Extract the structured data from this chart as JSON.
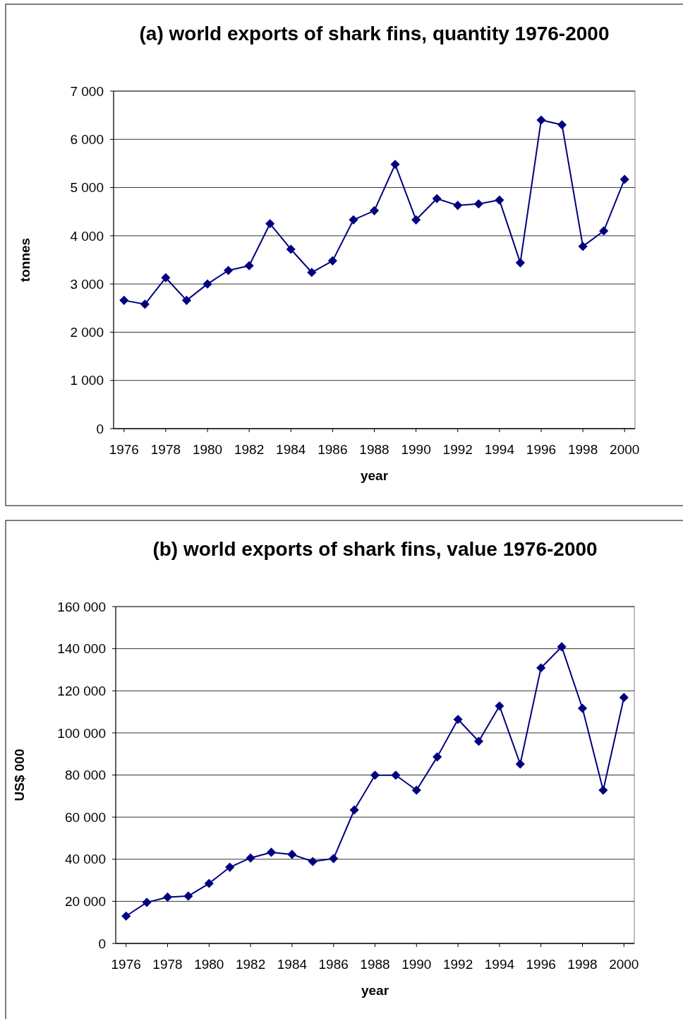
{
  "chart_data": [
    {
      "type": "line",
      "title": "(a) world exports of shark fins, quantity 1976-2000",
      "xlabel": "year",
      "ylabel": "tonnes",
      "x": [
        1976,
        1977,
        1978,
        1979,
        1980,
        1981,
        1982,
        1983,
        1984,
        1985,
        1986,
        1987,
        1988,
        1989,
        1990,
        1991,
        1992,
        1993,
        1994,
        1995,
        1996,
        1997,
        1998,
        1999,
        2000
      ],
      "series": [
        {
          "color": "#000080",
          "values": [
            2660,
            2580,
            3130,
            2660,
            3000,
            3280,
            3380,
            4250,
            3720,
            3240,
            3480,
            4330,
            4520,
            5480,
            4330,
            4770,
            4630,
            4660,
            4740,
            3440,
            6400,
            6300,
            3780,
            4100,
            5170
          ]
        }
      ],
      "xlim": [
        1975.5,
        2000.5
      ],
      "xticks": [
        1976,
        1978,
        1980,
        1982,
        1984,
        1986,
        1988,
        1990,
        1992,
        1994,
        1996,
        1998,
        2000
      ],
      "ylim": [
        0,
        7000
      ],
      "yticks": [
        0,
        {
          "value": 1000,
          "label": "1 000"
        },
        {
          "value": 2000,
          "label": "2 000"
        },
        {
          "value": 3000,
          "label": "3 000"
        },
        {
          "value": 4000,
          "label": "4 000"
        },
        {
          "value": 5000,
          "label": "5 000"
        },
        {
          "value": 6000,
          "label": "6 000"
        },
        {
          "value": 7000,
          "label": "7 000"
        }
      ],
      "grid": "y",
      "marker": "diamond",
      "line_style": "solid"
    },
    {
      "type": "line",
      "title": "(b) world exports of shark fins, value 1976-2000",
      "xlabel": "year",
      "ylabel": "US$ 000",
      "x": [
        1976,
        1977,
        1978,
        1979,
        1980,
        1981,
        1982,
        1983,
        1984,
        1985,
        1986,
        1987,
        1988,
        1989,
        1990,
        1991,
        1992,
        1993,
        1994,
        1995,
        1996,
        1997,
        1998,
        1999,
        2000
      ],
      "series": [
        {
          "color": "#000080",
          "values": [
            13000,
            19500,
            22000,
            22500,
            28500,
            36200,
            40600,
            43300,
            42300,
            38900,
            40300,
            63400,
            79900,
            79900,
            72800,
            88600,
            106400,
            96000,
            112800,
            85200,
            130900,
            140900,
            111700,
            72800,
            116800
          ]
        }
      ],
      "xlim": [
        1975.5,
        2000.5
      ],
      "xticks": [
        1976,
        1978,
        1980,
        1982,
        1984,
        1986,
        1988,
        1990,
        1992,
        1994,
        1996,
        1998,
        2000
      ],
      "ylim": [
        0,
        160000
      ],
      "yticks": [
        0,
        {
          "value": 20000,
          "label": "20 000"
        },
        {
          "value": 40000,
          "label": "40 000"
        },
        {
          "value": 60000,
          "label": "60 000"
        },
        {
          "value": 80000,
          "label": "80 000"
        },
        {
          "value": 100000,
          "label": "100 000"
        },
        {
          "value": 120000,
          "label": "120 000"
        },
        {
          "value": 140000,
          "label": "140 000"
        },
        {
          "value": 160000,
          "label": "160 000"
        }
      ],
      "grid": "y",
      "marker": "diamond",
      "line_style": "solid"
    }
  ]
}
